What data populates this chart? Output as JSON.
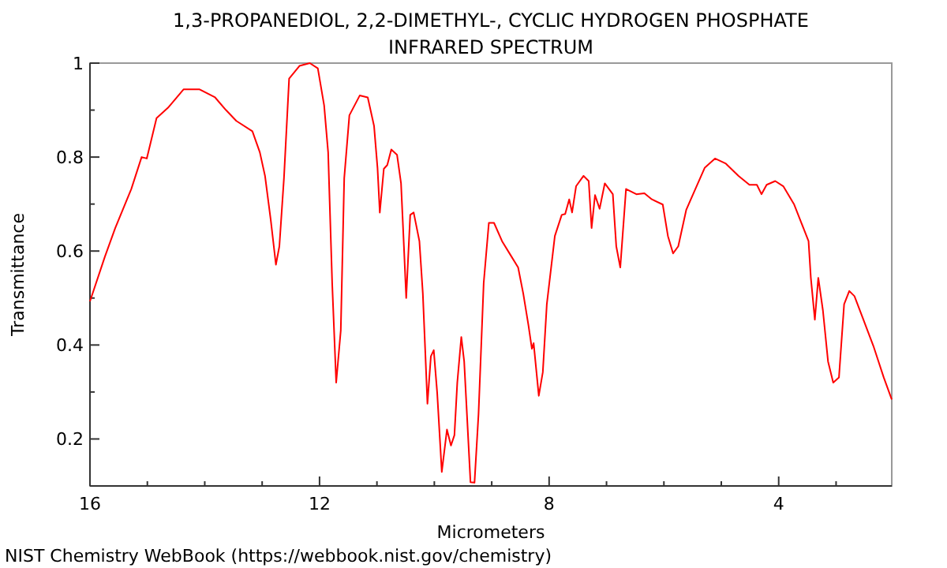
{
  "chart_data": {
    "type": "line",
    "title": "1,3-PROPANEDIOL, 2,2-DIMETHYL-, CYCLIC HYDROGEN PHOSPHATE",
    "subtitle": "INFRARED SPECTRUM",
    "xlabel": "Micrometers",
    "ylabel": "Transmittance",
    "annotations": [
      "NIST Chemistry WebBook (https://webbook.nist.gov/chemistry)"
    ],
    "xlim": [
      16,
      2.03
    ],
    "ylim": [
      0.1,
      1
    ],
    "xticks": [
      16,
      {
        "value": 15,
        "label": null
      },
      {
        "value": 14,
        "label": null
      },
      {
        "value": 13,
        "label": null
      },
      12,
      {
        "value": 11,
        "label": null
      },
      {
        "value": 10,
        "label": null
      },
      {
        "value": 9,
        "label": null
      },
      8,
      {
        "value": 7,
        "label": null
      },
      {
        "value": 6,
        "label": null
      },
      {
        "value": 5,
        "label": null
      },
      4,
      {
        "value": 3,
        "label": null
      }
    ],
    "yticks": [
      {
        "value": 0.1,
        "label": null
      },
      0.2,
      {
        "value": 0.3,
        "label": null
      },
      0.4,
      {
        "value": 0.5,
        "label": null
      },
      0.6,
      {
        "value": 0.7,
        "label": null
      },
      0.8,
      {
        "value": 0.9,
        "label": null
      },
      1
    ],
    "grid": false,
    "marker": "none",
    "line_style": "solid",
    "series": [
      {
        "color": "#ff0000",
        "x": [
          16,
          15.74,
          15.56,
          15.28,
          15.1,
          15.01,
          14.84,
          14.64,
          14.37,
          14.09,
          13.82,
          13.63,
          13.45,
          13.17,
          13.04,
          12.95,
          12.85,
          12.76,
          12.7,
          12.62,
          12.53,
          12.35,
          12.17,
          12.03,
          11.92,
          11.85,
          11.78,
          11.71,
          11.63,
          11.57,
          11.48,
          11.3,
          11.16,
          11.05,
          10.99,
          10.95,
          10.88,
          10.82,
          10.75,
          10.65,
          10.58,
          10.53,
          10.49,
          10.42,
          10.36,
          10.26,
          10.2,
          10.12,
          10.06,
          10.01,
          9.95,
          9.87,
          9.78,
          9.71,
          9.65,
          9.6,
          9.53,
          9.48,
          9.37,
          9.3,
          9.23,
          9.14,
          9.05,
          8.96,
          8.82,
          8.68,
          8.54,
          8.45,
          8.36,
          8.3,
          8.27,
          8.18,
          8.11,
          8.04,
          7.9,
          7.78,
          7.72,
          7.65,
          7.6,
          7.53,
          7.4,
          7.31,
          7.26,
          7.2,
          7.12,
          7.03,
          6.89,
          6.83,
          6.76,
          6.66,
          6.48,
          6.34,
          6.21,
          6.02,
          5.93,
          5.84,
          5.75,
          5.61,
          5.47,
          5.29,
          5.11,
          4.92,
          4.7,
          4.51,
          4.38,
          4.3,
          4.21,
          4.06,
          3.92,
          3.73,
          3.55,
          3.48,
          3.44,
          3.37,
          3.31,
          3.23,
          3.14,
          3.05,
          2.95,
          2.86,
          2.77,
          2.68,
          2.54,
          2.35,
          2.17,
          2.03
        ],
        "values": [
          0.493,
          0.588,
          0.649,
          0.732,
          0.8,
          0.797,
          0.883,
          0.905,
          0.944,
          0.944,
          0.927,
          0.9,
          0.877,
          0.855,
          0.81,
          0.76,
          0.666,
          0.571,
          0.61,
          0.755,
          0.967,
          0.994,
          1.0,
          0.989,
          0.91,
          0.81,
          0.532,
          0.32,
          0.431,
          0.755,
          0.889,
          0.931,
          0.927,
          0.866,
          0.777,
          0.682,
          0.775,
          0.783,
          0.816,
          0.805,
          0.744,
          0.61,
          0.5,
          0.677,
          0.682,
          0.621,
          0.509,
          0.275,
          0.376,
          0.389,
          0.298,
          0.13,
          0.22,
          0.186,
          0.208,
          0.32,
          0.417,
          0.365,
          0.108,
          0.107,
          0.253,
          0.532,
          0.66,
          0.66,
          0.621,
          0.593,
          0.565,
          0.509,
          0.442,
          0.392,
          0.404,
          0.292,
          0.342,
          0.487,
          0.632,
          0.677,
          0.679,
          0.71,
          0.682,
          0.738,
          0.76,
          0.749,
          0.649,
          0.719,
          0.69,
          0.744,
          0.721,
          0.61,
          0.565,
          0.732,
          0.721,
          0.723,
          0.71,
          0.699,
          0.632,
          0.595,
          0.61,
          0.688,
          0.727,
          0.777,
          0.797,
          0.786,
          0.76,
          0.741,
          0.741,
          0.721,
          0.741,
          0.749,
          0.738,
          0.699,
          0.643,
          0.621,
          0.543,
          0.454,
          0.543,
          0.474,
          0.365,
          0.32,
          0.331,
          0.487,
          0.515,
          0.504,
          0.459,
          0.398,
          0.331,
          0.284
        ]
      }
    ]
  }
}
